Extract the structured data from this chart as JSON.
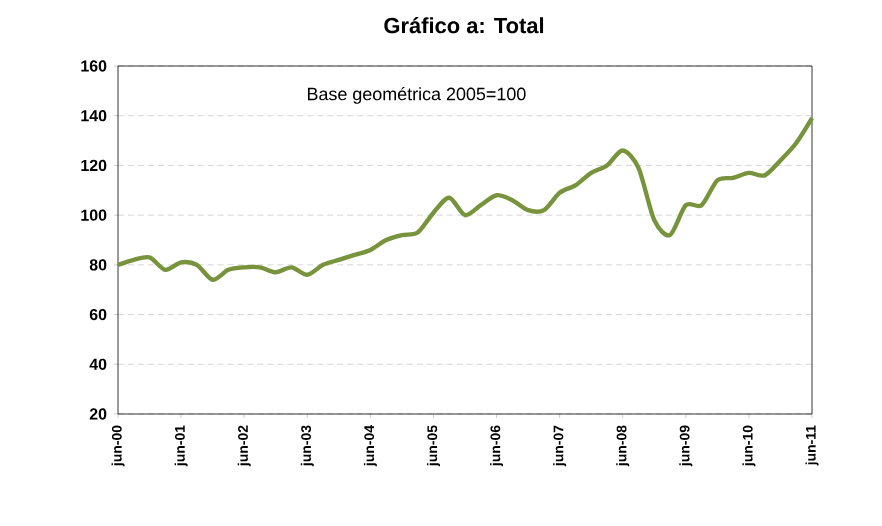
{
  "chart_data": {
    "type": "line",
    "title": "Gráfico a: Total",
    "annotations": [
      "Base geométrica 2005=100"
    ],
    "categories": [
      "jun-00",
      null,
      null,
      null,
      "jun-01",
      null,
      null,
      null,
      "jun-02",
      null,
      null,
      null,
      "jun-03",
      null,
      null,
      null,
      "jun-04",
      null,
      null,
      null,
      "jun-05",
      null,
      null,
      null,
      "jun-06",
      null,
      null,
      null,
      "jun-07",
      null,
      null,
      null,
      "jun-08",
      null,
      null,
      null,
      "jun-09",
      null,
      null,
      null,
      "jun-10",
      null,
      null,
      null,
      "jun-11"
    ],
    "series": [
      {
        "color": "#77933c",
        "values": [
          80,
          82,
          83,
          78,
          81,
          80,
          74,
          78,
          79,
          79,
          77,
          79,
          76,
          80,
          82,
          84,
          86,
          90,
          92,
          93,
          101,
          107,
          100,
          104,
          108,
          106,
          102,
          102,
          109,
          112,
          117,
          120,
          126,
          119,
          98,
          92,
          104,
          104,
          114,
          115,
          117,
          116,
          122,
          129,
          139
        ]
      }
    ],
    "ylim": [
      20,
      160
    ],
    "yticks": [
      20,
      40,
      60,
      80,
      100,
      120,
      140,
      160
    ],
    "grid": "y",
    "marker": "none",
    "line_style": "solid"
  }
}
